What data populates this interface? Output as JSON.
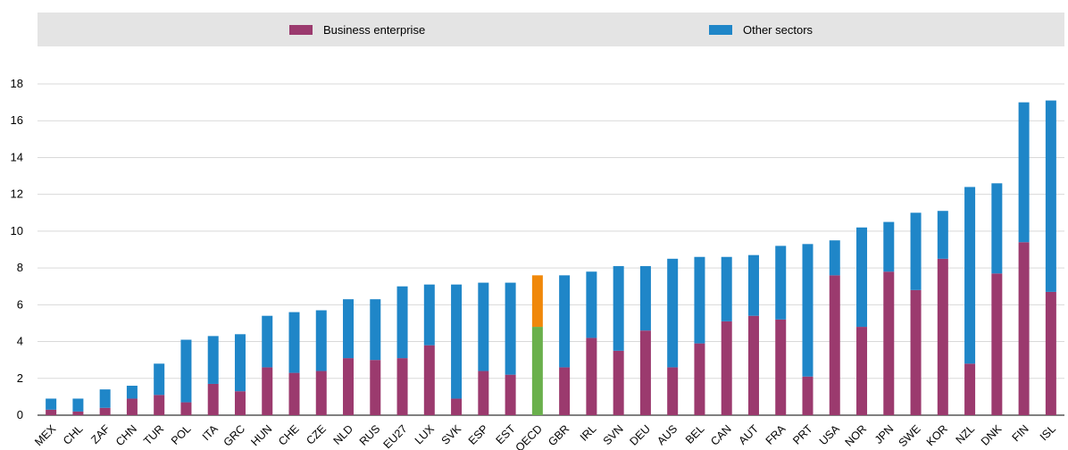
{
  "legend": {
    "item1": {
      "label": "Business enterprise",
      "color": "#9b3a6e"
    },
    "item2": {
      "label": "Other sectors",
      "color": "#1f86c8"
    }
  },
  "chart_data": {
    "type": "bar",
    "stacked": true,
    "ylim": [
      0,
      18
    ],
    "yticks": [
      0,
      2,
      4,
      6,
      8,
      10,
      12,
      14,
      16,
      18
    ],
    "grid": true,
    "legend_position": "top",
    "categories": [
      "MEX",
      "CHL",
      "ZAF",
      "CHN",
      "TUR",
      "POL",
      "ITA",
      "GRC",
      "HUN",
      "CHE",
      "CZE",
      "NLD",
      "RUS",
      "EU27",
      "LUX",
      "SVK",
      "ESP",
      "EST",
      "OECD",
      "GBR",
      "IRL",
      "SVN",
      "DEU",
      "AUS",
      "BEL",
      "CAN",
      "AUT",
      "FRA",
      "PRT",
      "USA",
      "NOR",
      "JPN",
      "SWE",
      "KOR",
      "NZL",
      "DNK",
      "FIN",
      "ISL"
    ],
    "series": [
      {
        "name": "Business enterprise",
        "color": "#9b3a6e",
        "values": [
          0.3,
          0.2,
          0.4,
          0.9,
          1.1,
          0.7,
          1.7,
          1.3,
          2.6,
          2.3,
          2.4,
          3.1,
          3.0,
          3.1,
          3.8,
          0.9,
          2.4,
          2.2,
          4.8,
          2.6,
          4.2,
          3.5,
          4.6,
          2.6,
          3.9,
          5.1,
          5.4,
          5.2,
          2.1,
          7.6,
          4.8,
          7.8,
          6.8,
          8.5,
          2.8,
          7.7,
          9.4,
          6.7
        ]
      },
      {
        "name": "Other sectors",
        "color": "#1f86c8",
        "values": [
          0.6,
          0.7,
          1.0,
          0.7,
          1.7,
          3.4,
          2.6,
          3.1,
          2.8,
          3.3,
          3.3,
          3.2,
          3.3,
          3.9,
          3.3,
          6.2,
          4.8,
          5.0,
          2.8,
          5.0,
          3.6,
          4.6,
          3.5,
          5.9,
          4.7,
          3.5,
          3.3,
          4.0,
          7.2,
          1.9,
          5.4,
          2.7,
          4.2,
          2.6,
          9.6,
          4.9,
          7.6,
          10.4
        ]
      }
    ],
    "highlight": {
      "category": "OECD",
      "colors": [
        "#6ab04c",
        "#f0880a"
      ]
    }
  }
}
